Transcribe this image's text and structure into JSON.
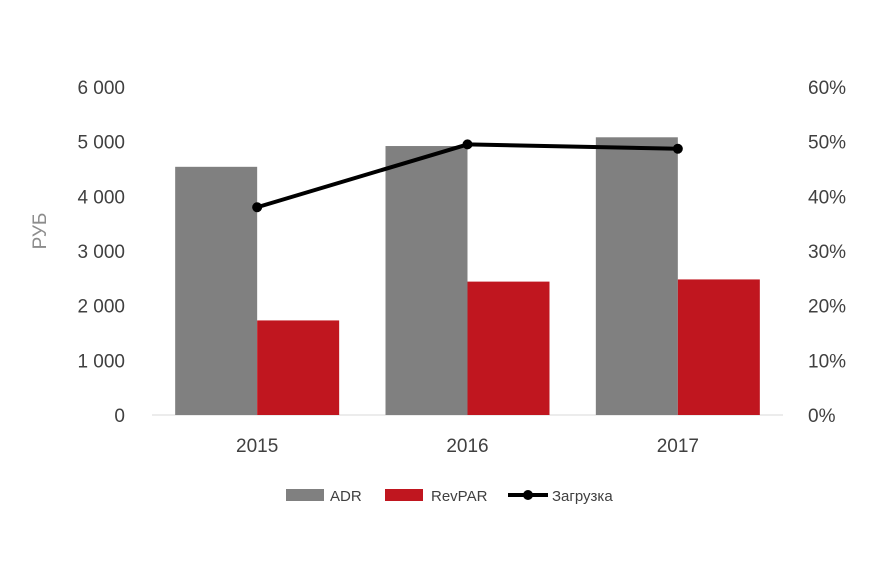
{
  "chart_data": {
    "type": "bar",
    "categories": [
      "2015",
      "2016",
      "2017"
    ],
    "series": [
      {
        "name": "ADR",
        "kind": "bar",
        "axis": "left",
        "color": "#808080",
        "values": [
          4540,
          4920,
          5080
        ]
      },
      {
        "name": "RevPAR",
        "kind": "bar",
        "axis": "left",
        "color": "#c0161f",
        "values": [
          1730,
          2440,
          2480
        ]
      },
      {
        "name": "Загрузка",
        "kind": "line",
        "axis": "right",
        "color": "#000000",
        "values": [
          0.38,
          0.495,
          0.487
        ]
      }
    ],
    "ylabel": "РУБ",
    "ylim": [
      0,
      6000
    ],
    "y_ticks": [
      "0",
      "1 000",
      "2 000",
      "3 000",
      "4 000",
      "5 000",
      "6 000"
    ],
    "y2lim": [
      0,
      0.6
    ],
    "y2_ticks": [
      "0%",
      "10%",
      "20%",
      "30%",
      "40%",
      "50%",
      "60%"
    ],
    "grid": false,
    "legend_position": "bottom"
  }
}
